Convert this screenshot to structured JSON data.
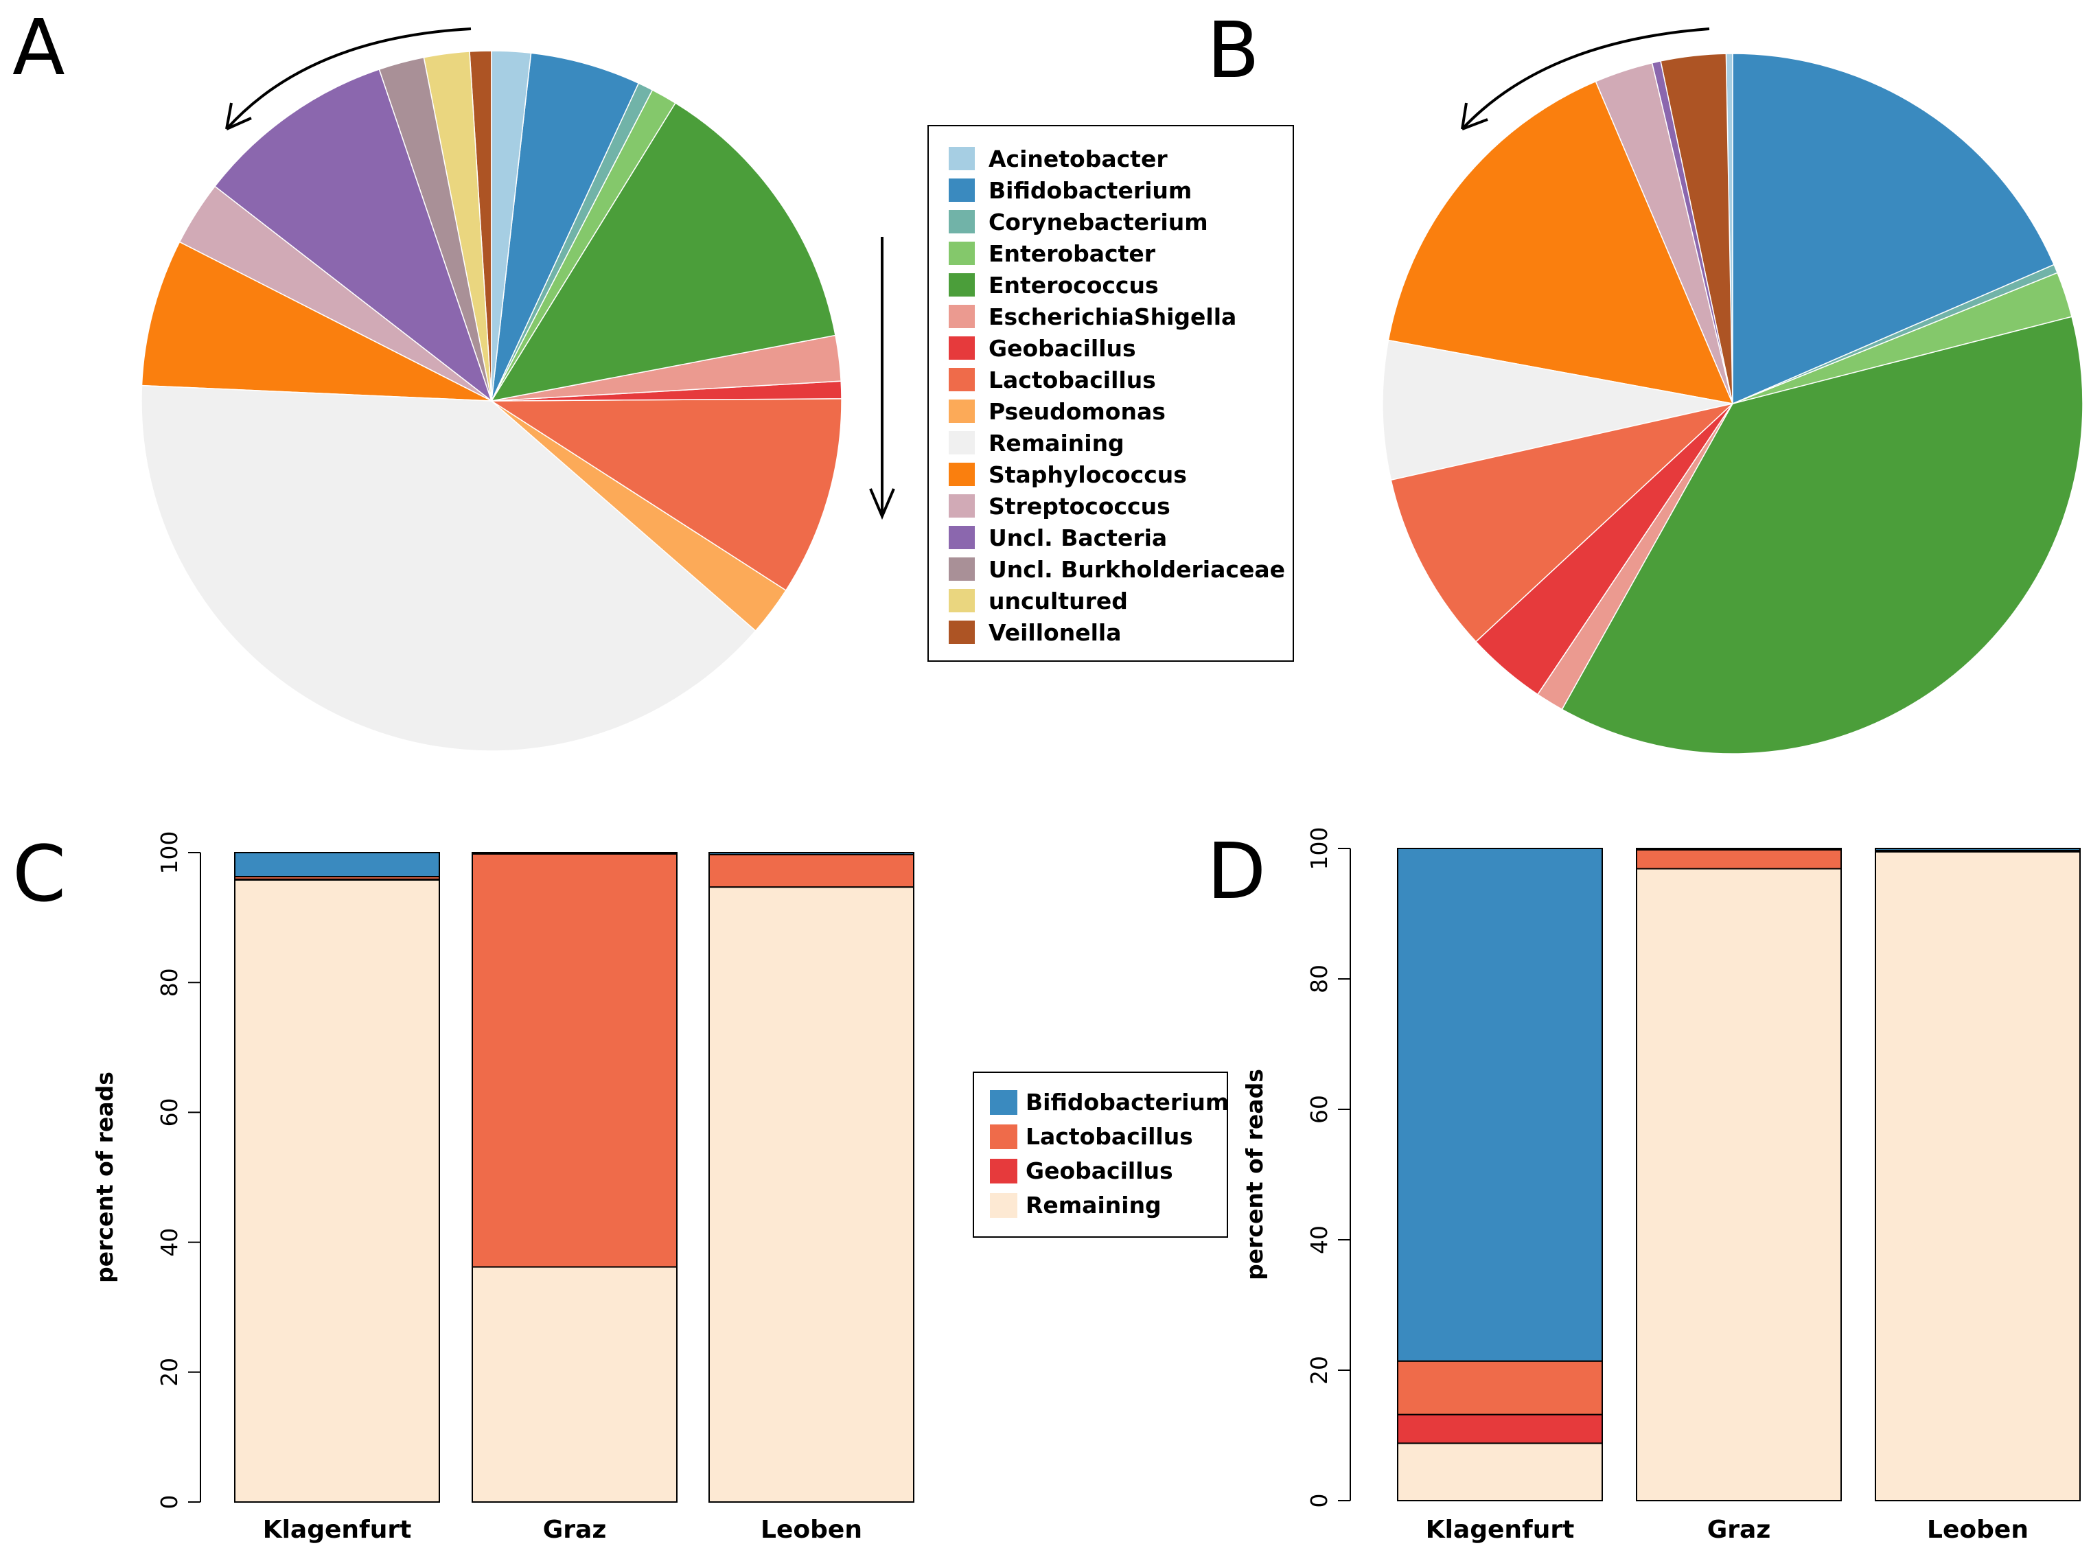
{
  "panels": {
    "A": "A",
    "B": "B",
    "C": "C",
    "D": "D"
  },
  "colors": {
    "Acinetobacter": "#a6cee3",
    "Bifidobacterium": "#3a8abf",
    "Corynebacterium": "#71b3a8",
    "Enterobacter": "#84c86b",
    "Enterococcus": "#4b9e3a",
    "EscherichiaShigella": "#eb9a90",
    "Geobacillus": "#e63a3c",
    "Lactobacillus": "#ef6b4a",
    "Pseudomonas": "#fcaa58",
    "Remaining": "#f0f0f0",
    "Staphylococcus": "#fa7f0e",
    "Streptococcus": "#d1aab6",
    "Uncl. Bacteria": "#8b67ae",
    "Uncl. Burkholderiaceae": "#a99097",
    "uncultured": "#ead67f",
    "Veillonella": "#ad5424",
    "RemainingBar": "#fde9d3"
  },
  "chart_data": [
    {
      "type": "pie",
      "panel": "A",
      "direction": "counter-clockwise from top",
      "slices": [
        {
          "label": "Veillonella",
          "value": 1.0
        },
        {
          "label": "uncultured",
          "value": 2.1
        },
        {
          "label": "Uncl. Burkholderiaceae",
          "value": 2.1
        },
        {
          "label": "Uncl. Bacteria",
          "value": 9.3
        },
        {
          "label": "Streptococcus",
          "value": 3.0
        },
        {
          "label": "Staphylococcus",
          "value": 6.8
        },
        {
          "label": "Remaining",
          "value": 39.3
        },
        {
          "label": "Pseudomonas",
          "value": 2.3
        },
        {
          "label": "Lactobacillus",
          "value": 9.2
        },
        {
          "label": "Geobacillus",
          "value": 0.8
        },
        {
          "label": "EscherichiaShigella",
          "value": 2.1
        },
        {
          "label": "Enterococcus",
          "value": 13.2
        },
        {
          "label": "Enterobacter",
          "value": 1.2
        },
        {
          "label": "Corynebacterium",
          "value": 0.7
        },
        {
          "label": "Bifidobacterium",
          "value": 5.1
        },
        {
          "label": "Acinetobacter",
          "value": 1.8
        }
      ]
    },
    {
      "type": "pie",
      "panel": "B",
      "direction": "counter-clockwise from top",
      "slices": [
        {
          "label": "Acinetobacter",
          "value": 0.3
        },
        {
          "label": "Veillonella",
          "value": 3.0
        },
        {
          "label": "Uncl. Bacteria",
          "value": 0.4
        },
        {
          "label": "Streptococcus",
          "value": 2.7
        },
        {
          "label": "Staphylococcus",
          "value": 15.7
        },
        {
          "label": "Remaining",
          "value": 6.4
        },
        {
          "label": "Lactobacillus",
          "value": 8.4
        },
        {
          "label": "Geobacillus",
          "value": 3.7
        },
        {
          "label": "EscherichiaShigella",
          "value": 1.3
        },
        {
          "label": "Enterococcus",
          "value": 37.1
        },
        {
          "label": "Enterobacter",
          "value": 2.1
        },
        {
          "label": "Corynebacterium",
          "value": 0.4
        },
        {
          "label": "Bifidobacterium",
          "value": 18.5
        }
      ]
    },
    {
      "type": "bar",
      "stacked": true,
      "panel": "C",
      "categories": [
        "Klagenfurt",
        "Graz",
        "Leoben"
      ],
      "series": [
        {
          "name": "Remaining",
          "values": [
            95.8,
            36.2,
            94.7
          ]
        },
        {
          "name": "Geobacillus",
          "values": [
            0.1,
            0.0,
            0.0
          ]
        },
        {
          "name": "Lactobacillus",
          "values": [
            0.4,
            63.6,
            5.0
          ]
        },
        {
          "name": "Bifidobacterium",
          "values": [
            3.7,
            0.2,
            0.3
          ]
        }
      ],
      "ylabel": "percent of reads",
      "ylim": [
        0,
        100
      ],
      "yticks": [
        0,
        20,
        40,
        60,
        80,
        100
      ]
    },
    {
      "type": "bar",
      "stacked": true,
      "panel": "D",
      "categories": [
        "Klagenfurt",
        "Graz",
        "Leoben"
      ],
      "series": [
        {
          "name": "Remaining",
          "values": [
            8.8,
            96.9,
            99.5
          ]
        },
        {
          "name": "Geobacillus",
          "values": [
            4.4,
            0.0,
            0.0
          ]
        },
        {
          "name": "Lactobacillus",
          "values": [
            8.2,
            2.9,
            0.2
          ]
        },
        {
          "name": "Bifidobacterium",
          "values": [
            78.6,
            0.2,
            0.3
          ]
        }
      ],
      "ylabel": "percent of reads",
      "ylim": [
        0,
        100
      ],
      "yticks": [
        0,
        20,
        40,
        60,
        80,
        100
      ]
    }
  ],
  "pie_legend": [
    "Acinetobacter",
    "Bifidobacterium",
    "Corynebacterium",
    "Enterobacter",
    "Enterococcus",
    "EscherichiaShigella",
    "Geobacillus",
    "Lactobacillus",
    "Pseudomonas",
    "Remaining",
    "Staphylococcus",
    "Streptococcus",
    "Uncl. Bacteria",
    "Uncl. Burkholderiaceae",
    "uncultured",
    "Veillonella"
  ],
  "bar_legend": [
    "Bifidobacterium",
    "Lactobacillus",
    "Geobacillus",
    "Remaining"
  ]
}
